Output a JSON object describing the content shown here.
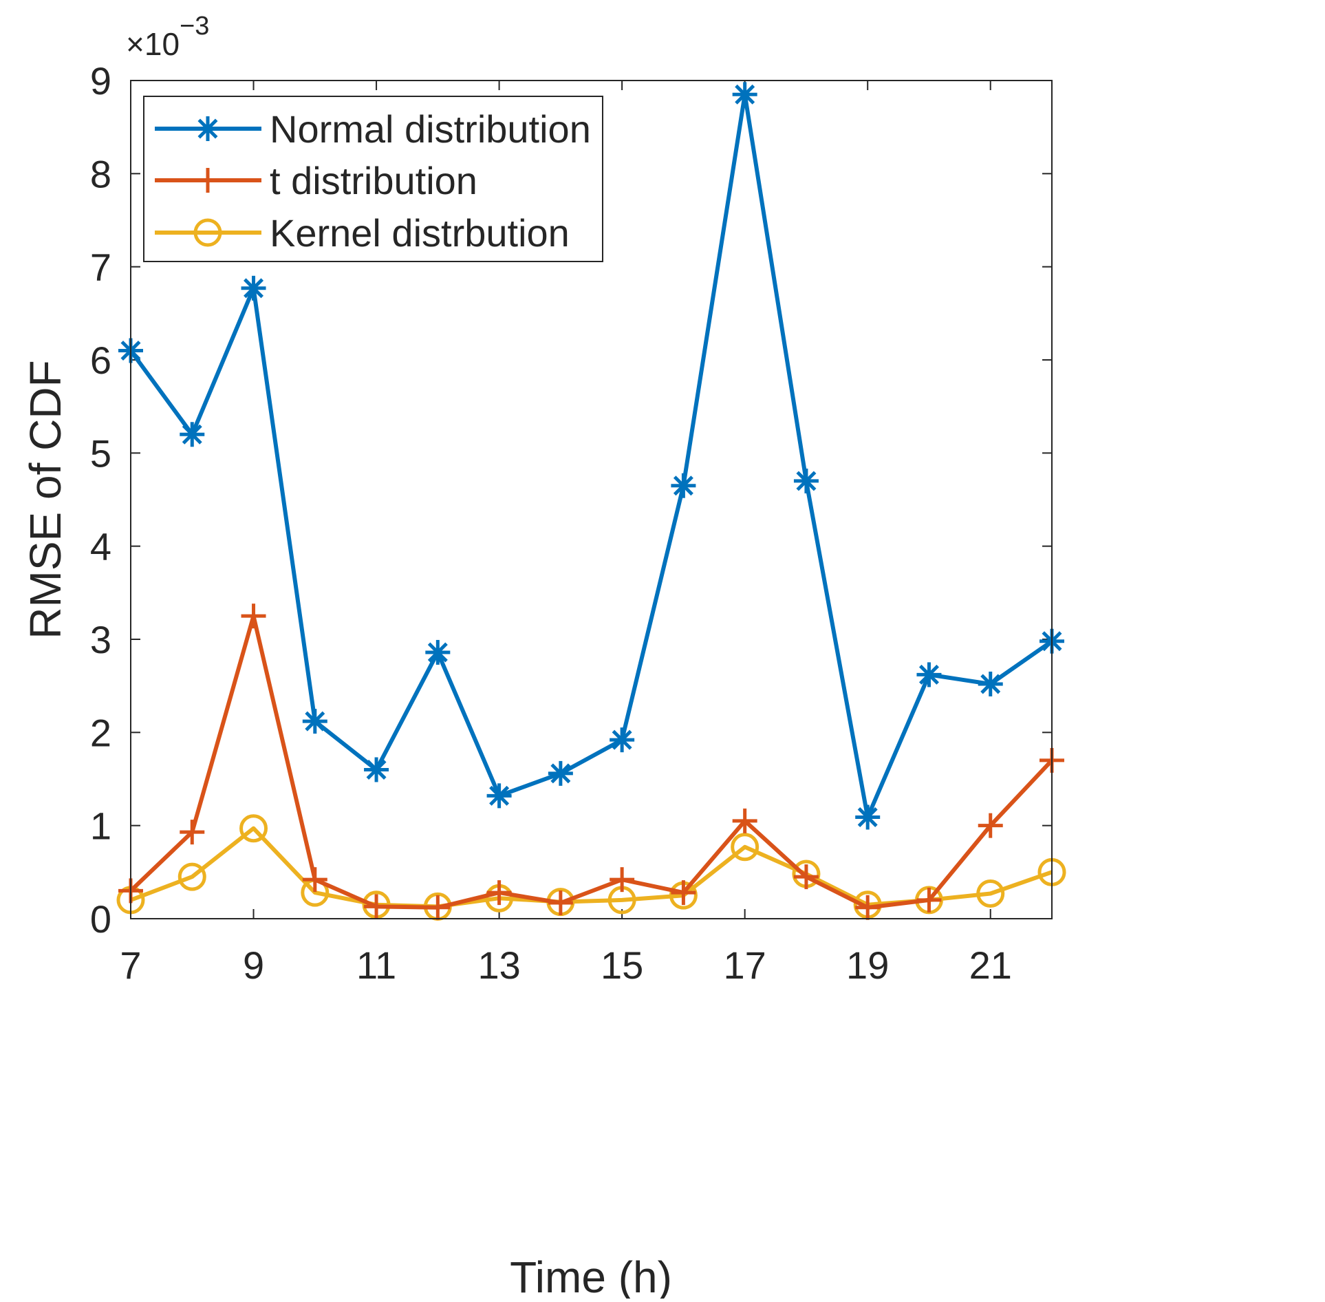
{
  "chart_data": {
    "type": "line",
    "title": "",
    "xlabel": "Time (h)",
    "ylabel": "RMSE of CDF",
    "y_exponent_label": "×10",
    "y_exponent_power": "−3",
    "y_exponent_value": -3,
    "xlim": [
      7,
      22
    ],
    "ylim": [
      0,
      9
    ],
    "x_ticks": [
      7,
      9,
      11,
      13,
      15,
      17,
      19,
      21
    ],
    "x_tick_labels": [
      "7",
      "9",
      "11",
      "13",
      "15",
      "17",
      "19",
      "21"
    ],
    "y_ticks": [
      0,
      1,
      2,
      3,
      4,
      5,
      6,
      7,
      8,
      9
    ],
    "y_tick_labels": [
      "0",
      "1",
      "2",
      "3",
      "4",
      "5",
      "6",
      "7",
      "8",
      "9"
    ],
    "grid": false,
    "legend_position": "top-left",
    "x": [
      7,
      8,
      9,
      10,
      11,
      12,
      13,
      14,
      15,
      16,
      17,
      18,
      19,
      20,
      21,
      22
    ],
    "series": [
      {
        "name": "Normal distribution",
        "color": "#0072BD",
        "marker": "asterisk",
        "values": [
          6.1,
          5.2,
          6.77,
          2.12,
          1.6,
          2.86,
          1.32,
          1.56,
          1.92,
          4.65,
          8.85,
          4.7,
          1.09,
          2.62,
          2.52,
          2.98
        ]
      },
      {
        "name": "t distribution",
        "color": "#D95319",
        "marker": "plus",
        "values": [
          0.3,
          0.93,
          3.25,
          0.42,
          0.13,
          0.12,
          0.28,
          0.17,
          0.42,
          0.28,
          1.05,
          0.45,
          0.12,
          0.2,
          1.0,
          1.7
        ]
      },
      {
        "name": "Kernel distrbution",
        "color": "#EDB120",
        "marker": "circle",
        "values": [
          0.2,
          0.45,
          0.97,
          0.28,
          0.15,
          0.13,
          0.22,
          0.18,
          0.2,
          0.25,
          0.77,
          0.48,
          0.15,
          0.2,
          0.27,
          0.5
        ]
      }
    ]
  }
}
